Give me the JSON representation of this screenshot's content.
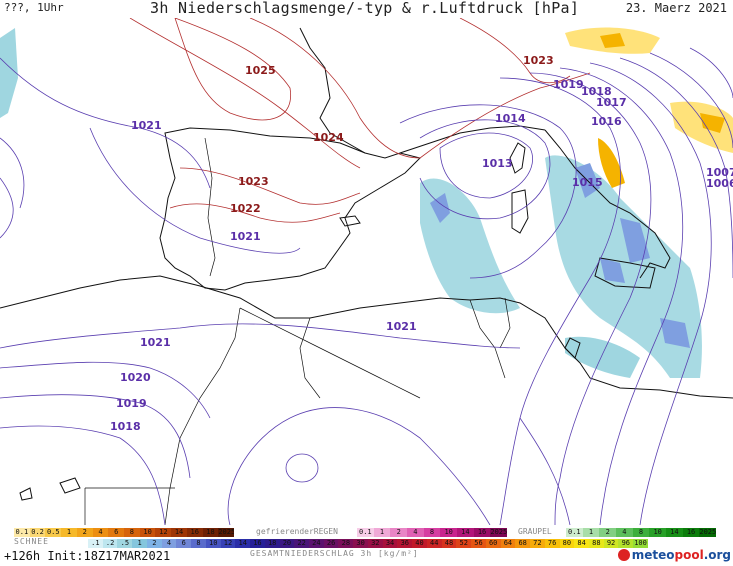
{
  "header": {
    "left": "???, 1Uhr",
    "title": "3h Niederschlagsmenge/-typ & r.Luftdruck [hPa]",
    "date": "23. Maerz 2021"
  },
  "map": {
    "pressure_labels": [
      {
        "text": "1025",
        "kind": "high"
      },
      {
        "text": "1023",
        "kind": "high"
      },
      {
        "text": "1024",
        "kind": "high"
      },
      {
        "text": "1023",
        "kind": "high"
      },
      {
        "text": "1022",
        "kind": "high"
      },
      {
        "text": "1021",
        "kind": "low"
      },
      {
        "text": "1021",
        "kind": "low"
      },
      {
        "text": "1021",
        "kind": "low"
      },
      {
        "text": "1021",
        "kind": "low"
      },
      {
        "text": "1020",
        "kind": "low"
      },
      {
        "text": "1019",
        "kind": "low"
      },
      {
        "text": "1018",
        "kind": "low"
      },
      {
        "text": "1019",
        "kind": "low"
      },
      {
        "text": "1018",
        "kind": "low"
      },
      {
        "text": "1017",
        "kind": "low"
      },
      {
        "text": "1016",
        "kind": "low"
      },
      {
        "text": "1014",
        "kind": "low"
      },
      {
        "text": "1013",
        "kind": "low"
      },
      {
        "text": "1015",
        "kind": "low"
      },
      {
        "text": "1007",
        "kind": "low"
      },
      {
        "text": "1006",
        "kind": "low"
      }
    ],
    "colors": {
      "high_isobar": "#b33030",
      "low_isobar": "#5a3fb0",
      "coast": "#111111",
      "rain_light": "#9fd6e0",
      "rain_medium": "#7f9fe0",
      "snow": "#f5b300",
      "snow_light": "#ffe27a"
    }
  },
  "legend": {
    "snow_label": "SCHNEE",
    "freezing_label": "gefrierenderREGEN",
    "graupel_label": "GRAUPEL",
    "total_label": "GESAMTNIEDERSCHLAG 3h [kg/m²]",
    "snow_scale": [
      "0.1",
      "0.2",
      "0.5",
      "1",
      "2",
      "4",
      "6",
      "8",
      "10",
      "12",
      "14",
      "16",
      "18",
      "2025+"
    ],
    "freezing_scale": [
      "0.1",
      "1",
      "2",
      "4",
      "8",
      "10",
      "14",
      "16",
      "2025+"
    ],
    "graupel_scale": [
      "0.1",
      "1",
      "2",
      "4",
      "8",
      "10",
      "14",
      "16",
      "2025+"
    ],
    "total_scale": [
      ".1",
      ".2",
      ".5",
      "1",
      "2",
      "4",
      "6",
      "8",
      "10",
      "12",
      "14",
      "16",
      "18",
      "20",
      "22",
      "24",
      "26",
      "28",
      "30",
      "32",
      "34",
      "36",
      "40",
      "44",
      "48",
      "52",
      "56",
      "60",
      "64",
      "68",
      "72",
      "76",
      "80",
      "84",
      "88",
      "92",
      "96",
      "100"
    ]
  },
  "footer": {
    "run_info": "+126h Init:18Z17MAR2021",
    "logo_text_1": "meteo",
    "logo_text_2": "pool",
    "logo_text_3": ".org"
  }
}
